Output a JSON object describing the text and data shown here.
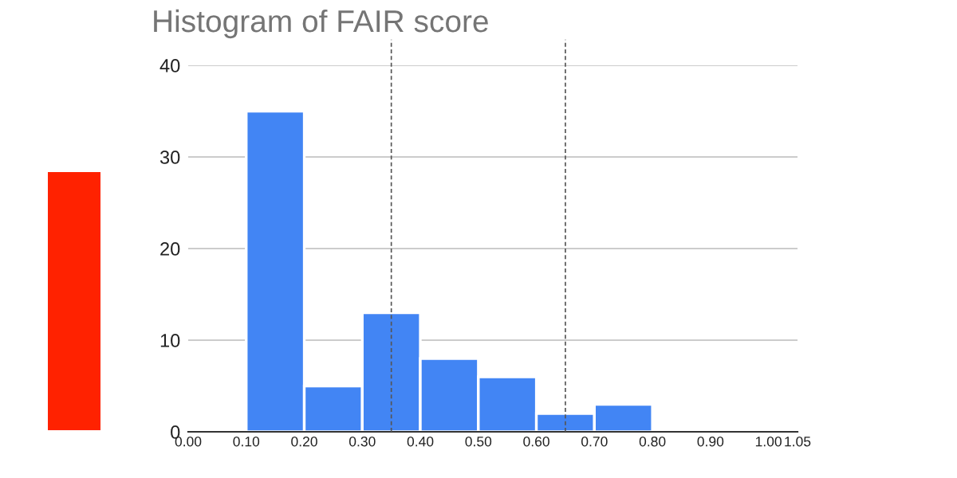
{
  "chart_data": {
    "type": "histogram",
    "title": "Histogram of FAIR score",
    "bins": [
      0.1,
      0.2,
      0.3,
      0.4,
      0.5,
      0.6,
      0.7,
      0.8
    ],
    "values": [
      35,
      5,
      13,
      8,
      6,
      2,
      3
    ],
    "color": "#4285f4",
    "xlim": [
      0,
      1.05
    ],
    "xticks": [
      {
        "value": 0,
        "label": "0.00"
      },
      {
        "value": 0.1,
        "label": "0.10"
      },
      {
        "value": 0.2,
        "label": "0.20"
      },
      {
        "value": 0.3,
        "label": "0.30"
      },
      {
        "value": 0.4,
        "label": "0.40"
      },
      {
        "value": 0.5,
        "label": "0.50"
      },
      {
        "value": 0.6,
        "label": "0.60"
      },
      {
        "value": 0.7,
        "label": "0.70"
      },
      {
        "value": 0.8,
        "label": "0.80"
      },
      {
        "value": 0.9,
        "label": "0.90"
      },
      {
        "value": 1.0,
        "label": "1.00"
      },
      {
        "value": 1.05,
        "label": "1.05"
      }
    ],
    "ylim": [
      0,
      40
    ],
    "yticks": [
      0,
      10,
      20,
      30,
      40
    ],
    "grid": "y",
    "ref_lines": [
      {
        "axis": "x",
        "value": 0.35,
        "line_style": "dashed",
        "color": "#555555"
      },
      {
        "axis": "x",
        "value": 0.65,
        "line_style": "dashed",
        "color": "#555555"
      }
    ]
  }
}
